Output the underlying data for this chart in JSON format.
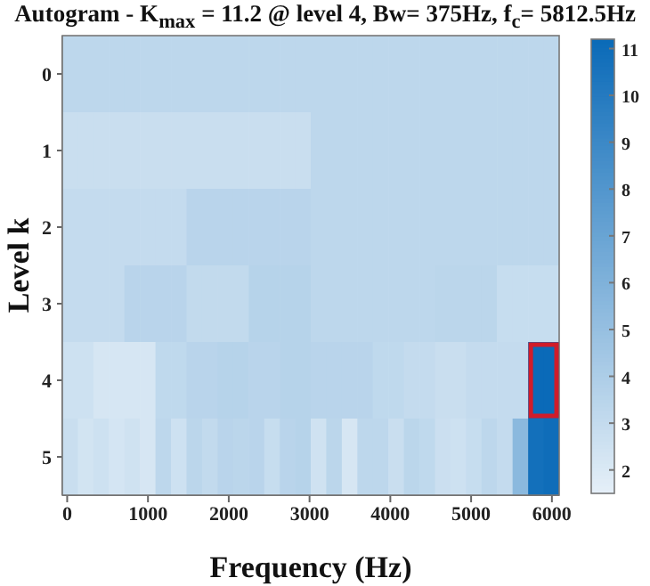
{
  "chart_data": {
    "type": "heatmap",
    "title": "Autogram - K$_{max}$ = 11.2 @ level 4, Bw= 375Hz, f$_{c}$= 5812.5Hz",
    "xlabel": "Frequency (Hz)",
    "ylabel": "Level k",
    "xlim": [
      -60,
      6090
    ],
    "xticks": [
      0,
      1000,
      2000,
      3000,
      4000,
      5000,
      6000
    ],
    "ylim": [
      5.5,
      -0.5
    ],
    "yticks": [
      0,
      1,
      2,
      3,
      4,
      5
    ],
    "clim": [
      1.5,
      11.2
    ],
    "cticks": [
      2,
      3,
      4,
      5,
      6,
      7,
      8,
      9,
      10,
      11
    ],
    "cells": [
      [
        3.3,
        3.3,
        3.3,
        3.3,
        3.3,
        3.3,
        3.3,
        3.3,
        3.3,
        3.3,
        3.3,
        3.3,
        3.3,
        3.3,
        3.3,
        3.3,
        3.3,
        3.3,
        3.3,
        3.3,
        3.3,
        3.3,
        3.3,
        3.3,
        3.3,
        3.3,
        3.3,
        3.3,
        3.3,
        3.3,
        3.3,
        3.3
      ],
      [
        2.8,
        2.8,
        2.8,
        2.8,
        2.8,
        2.8,
        2.8,
        2.8,
        2.8,
        2.8,
        2.8,
        2.8,
        2.8,
        2.8,
        2.8,
        2.8,
        3.3,
        3.3,
        3.3,
        3.3,
        3.3,
        3.3,
        3.3,
        3.3,
        3.3,
        3.3,
        3.3,
        3.3,
        3.3,
        3.3,
        3.3,
        3.3
      ],
      [
        3.0,
        3.0,
        3.0,
        3.0,
        3.0,
        3.0,
        3.0,
        3.0,
        3.5,
        3.5,
        3.5,
        3.5,
        3.5,
        3.5,
        3.5,
        3.5,
        3.3,
        3.3,
        3.3,
        3.3,
        3.3,
        3.3,
        3.3,
        3.3,
        3.3,
        3.3,
        3.3,
        3.3,
        3.3,
        3.3,
        3.3,
        3.3
      ],
      [
        3.0,
        3.0,
        3.0,
        3.0,
        3.5,
        3.5,
        3.5,
        3.5,
        3.1,
        3.1,
        3.1,
        3.1,
        3.6,
        3.6,
        3.6,
        3.6,
        3.3,
        3.3,
        3.3,
        3.3,
        3.3,
        3.3,
        3.3,
        3.3,
        3.4,
        3.4,
        3.4,
        3.4,
        2.9,
        2.9,
        2.9,
        2.9
      ],
      [
        2.6,
        2.6,
        2.2,
        2.2,
        2.2,
        2.2,
        3.2,
        3.2,
        3.5,
        3.5,
        3.6,
        3.6,
        3.5,
        3.5,
        3.6,
        3.6,
        3.5,
        3.5,
        3.5,
        3.5,
        3.2,
        3.2,
        3.0,
        3.0,
        2.8,
        2.8,
        3.0,
        3.0,
        3.0,
        3.0,
        11.2,
        11.2
      ],
      [
        2.8,
        2.4,
        2.6,
        2.3,
        2.5,
        2.2,
        3.3,
        2.6,
        3.4,
        3.1,
        3.5,
        3.4,
        3.5,
        2.9,
        3.5,
        3.6,
        2.5,
        3.4,
        2.2,
        3.3,
        3.3,
        2.8,
        3.4,
        3.2,
        2.7,
        2.6,
        2.9,
        3.3,
        3.0,
        5.5,
        10.8,
        11.0
      ]
    ]
  }
}
